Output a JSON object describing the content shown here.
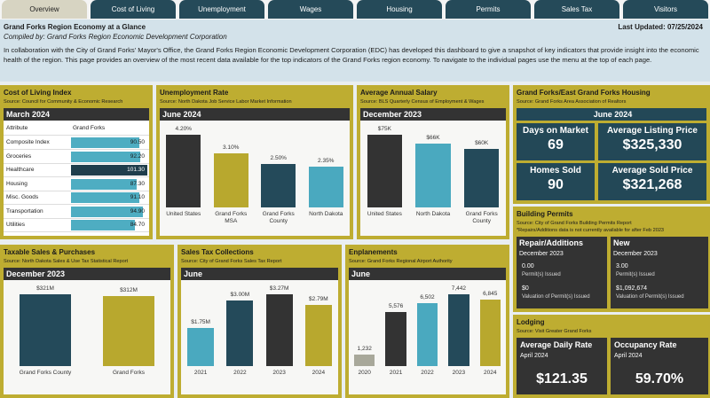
{
  "tabs": [
    "Overview",
    "Cost of Living",
    "Unemployment",
    "Wages",
    "Housing",
    "Permits",
    "Sales Tax",
    "Visitors"
  ],
  "header": {
    "title": "Grand Forks Region Economy at a Glance",
    "compiled_by": "Compiled by: Grand Forks Region Economic Development Corporation",
    "last_updated": "Last Updated: 07/25/2024",
    "intro": "In collaboration with the City of Grand Forks' Mayor's Office, the Grand Forks Region Economic Development Corporation (EDC) has developed this dashboard to give a snapshot of key indicators that provide insight into the economic health of the region. This page provides an overview of the most recent data available for the top indicators of the Grand Forks region economy. To navigate to the individual pages use the menu at the top of each page."
  },
  "cost_of_living": {
    "title": "Cost of Living Index",
    "source": "Source: Council for Community & Economic Research",
    "period": "March 2024",
    "columns": [
      "Attribute",
      "Grand Forks"
    ],
    "categories": [
      "Composite Index",
      "Groceries",
      "Healthcare",
      "Housing",
      "Misc. Goods",
      "Transportation",
      "Utilities"
    ],
    "values": [
      90.5,
      92.2,
      101.3,
      87.3,
      91.1,
      94.9,
      84.7
    ],
    "value_labels": [
      "90.50",
      "92.20",
      "101.30",
      "87.30",
      "91.10",
      "94.90",
      "84.70"
    ],
    "colors": [
      "#4eadc2",
      "#4eadc2",
      "#1f3e4c",
      "#4eadc2",
      "#4eadc2",
      "#4eadc2",
      "#4eadc2"
    ]
  },
  "unemployment": {
    "title": "Unemployment Rate",
    "source": "Source: North Dakota Job Service Labor Market Information",
    "period": "June 2024",
    "categories": [
      "United States",
      "Grand Forks MSA",
      "Grand Forks County",
      "North Dakota"
    ],
    "values": [
      4.2,
      3.1,
      2.5,
      2.35
    ],
    "value_labels": [
      "4.20%",
      "3.10%",
      "2.50%",
      "2.35%"
    ],
    "colors": [
      "#333333",
      "#b8a82e",
      "#244a5a",
      "#4aa9bf"
    ]
  },
  "salary": {
    "title": "Average Annual Salary",
    "source": "Source: BLS Quarterly Census of Employment & Wages",
    "period": "December 2023",
    "categories": [
      "United States",
      "North Dakota",
      "Grand Forks County"
    ],
    "values": [
      75000,
      66000,
      60000
    ],
    "value_labels": [
      "$75K",
      "$66K",
      "$60K"
    ],
    "colors": [
      "#333333",
      "#4aa9bf",
      "#244a5a"
    ]
  },
  "housing": {
    "title": "Grand Forks/East Grand Forks Housing",
    "source": "Source: Grand Forks Area Association of Realtors",
    "period": "June 2024",
    "items": [
      {
        "label": "Days on Market",
        "value": "69"
      },
      {
        "label": "Average Listing Price",
        "value": "$325,330"
      },
      {
        "label": "Homes Sold",
        "value": "90"
      },
      {
        "label": "Average Sold Price",
        "value": "$321,268"
      }
    ]
  },
  "permits": {
    "title": "Building Permits",
    "source": "Source: City of Grand Forks Building Permits Report",
    "note": "*Repairs/Additions data is not currently available for after Feb 2023",
    "boxes": [
      {
        "header": "Repair/Additions",
        "period": "December 2023",
        "items": [
          {
            "value": "0.00",
            "label": "Permit(s) Issued"
          },
          {
            "value": "$0",
            "label": "Valuation of Permit(s) Issued"
          }
        ]
      },
      {
        "header": "New",
        "period": "December 2023",
        "items": [
          {
            "value": "3.00",
            "label": "Permit(s) Issued"
          },
          {
            "value": "$1,092,674",
            "label": "Valuation of Permit(s) Issued"
          }
        ]
      }
    ]
  },
  "lodging": {
    "title": "Lodging",
    "source": "Source: Visit Greater Grand Forks",
    "boxes": [
      {
        "label": "Average Daily Rate",
        "period": "April 2024",
        "value": "$121.35"
      },
      {
        "label": "Occupancy Rate",
        "period": "April 2024",
        "value": "59.70%"
      }
    ]
  },
  "taxable_sales": {
    "title": "Taxable Sales & Purchases",
    "source": "Source: North Dakota Sales & Use Tax Statistical Report",
    "period": "December 2023",
    "categories": [
      "Grand Forks County",
      "Grand Forks"
    ],
    "values": [
      321000000,
      312000000
    ],
    "value_labels": [
      "$321M",
      "$312M"
    ],
    "colors": [
      "#244a5a",
      "#b8a82e"
    ]
  },
  "sales_tax": {
    "title": "Sales Tax Collections",
    "source": "Source: City of Grand Forks Sales Tax Report",
    "period": "June",
    "categories": [
      "2021",
      "2022",
      "2023",
      "2024"
    ],
    "values": [
      1750000,
      3000000,
      3270000,
      2790000
    ],
    "value_labels": [
      "$1.75M",
      "$3.00M",
      "$3.27M",
      "$2.79M"
    ],
    "colors": [
      "#4aa9bf",
      "#244a5a",
      "#333333",
      "#b8a82e"
    ]
  },
  "enplanements": {
    "title": "Enplanements",
    "source": "Source: Grand Forks Regional Airport Authority",
    "period": "June",
    "categories": [
      "2020",
      "2021",
      "2022",
      "2023",
      "2024"
    ],
    "values": [
      1232,
      5576,
      6502,
      7442,
      6845
    ],
    "value_labels": [
      "1,232",
      "5,576",
      "6,502",
      "7,442",
      "6,845"
    ],
    "colors": [
      "#a8a89a",
      "#333333",
      "#4aa9bf",
      "#244a5a",
      "#b8a82e"
    ]
  }
}
